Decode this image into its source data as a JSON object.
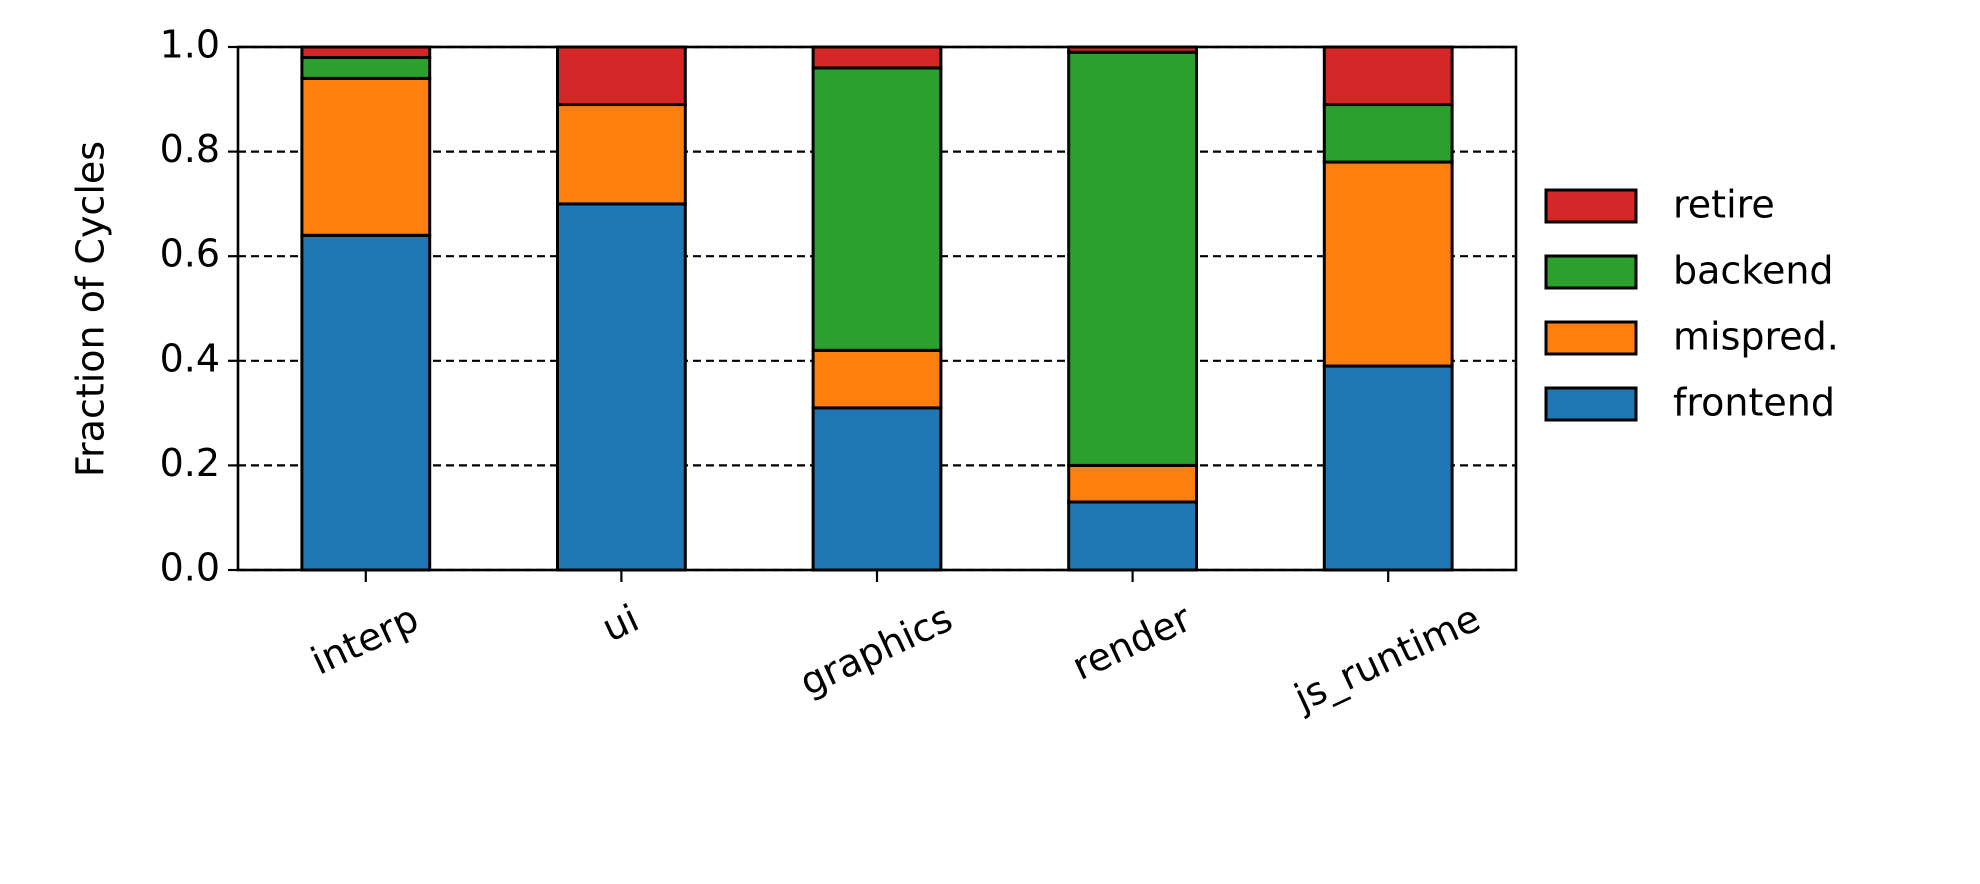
{
  "chart_data": {
    "type": "stacked_bar",
    "y_label": "Fraction of Cycles",
    "categories": [
      "interp",
      "ui",
      "graphics",
      "render",
      "js_runtime"
    ],
    "series": [
      {
        "name": "frontend",
        "color": "#1f77b4",
        "values": [
          0.64,
          0.7,
          0.31,
          0.13,
          0.39
        ]
      },
      {
        "name": "mispred.",
        "color": "#ff7f0e",
        "values": [
          0.3,
          0.19,
          0.11,
          0.07,
          0.39
        ]
      },
      {
        "name": "backend",
        "color": "#2ca02c",
        "values": [
          0.04,
          0,
          0.54,
          0.79,
          0.11
        ]
      },
      {
        "name": "retire",
        "color": "#d62728",
        "values": [
          0.02,
          0.11,
          0.04,
          0.01,
          0.11
        ]
      }
    ],
    "ylim": [
      0,
      1
    ],
    "yticks": [
      {
        "value": 0,
        "label": "0.0"
      },
      0.2,
      0.4,
      0.6,
      0.8,
      {
        "value": 1,
        "label": "1.0"
      }
    ],
    "grid": true,
    "legend": "right"
  }
}
